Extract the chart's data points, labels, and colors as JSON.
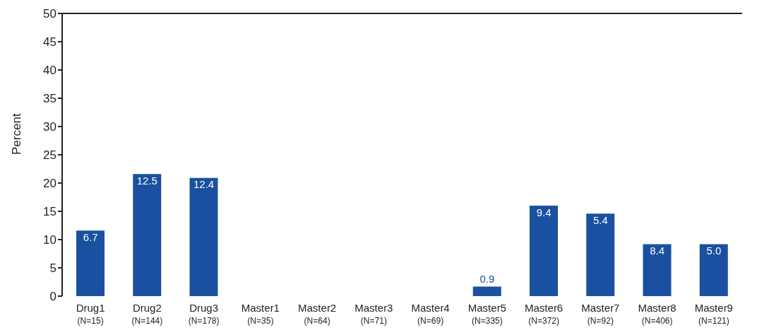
{
  "chart_data": {
    "type": "bar",
    "ylabel": "Percent",
    "categories": [
      "Drug1\n(N=15)",
      "Drug2\n(N=144)",
      "Drug3\n(N=178)",
      "Master1\n(N=35)",
      "Master2\n(N=64)",
      "Master3\n(N=71)",
      "Master4\n(N=69)",
      "Master5\n(N=335)",
      "Master6\n(N=372)",
      "Master7\n(N=92)",
      "Master8\n(N=406)",
      "Master9\n(N=121)"
    ],
    "values": [
      11.6,
      21.6,
      20.9,
      0,
      0,
      0,
      0,
      1.7,
      16.0,
      14.6,
      9.2,
      9.2
    ],
    "annotations": [
      {
        "text": "6.7",
        "x": "Drug1\n(N=15)",
        "y": 11.6
      },
      {
        "text": "12.5",
        "x": "Drug2\n(N=144)",
        "y": 21.6
      },
      {
        "text": "12.4",
        "x": "Drug3\n(N=178)",
        "y": 20.9
      },
      {
        "text": "0.9",
        "x": "Master5\n(N=335)",
        "y": 1.7
      },
      {
        "text": "9.4",
        "x": "Master6\n(N=372)",
        "y": 16.0
      },
      {
        "text": "5.4",
        "x": "Master7\n(N=92)",
        "y": 14.6
      },
      {
        "text": "8.4",
        "x": "Master8\n(N=406)",
        "y": 9.2
      },
      {
        "text": "5.0",
        "x": "Master9\n(N=121)",
        "y": 9.2
      }
    ],
    "color": "#1a50a0",
    "ylim": [
      0,
      50
    ],
    "yticks": [
      0,
      5,
      10,
      15,
      20,
      25,
      30,
      35,
      40,
      45,
      50
    ],
    "grid": false,
    "legend": false
  }
}
